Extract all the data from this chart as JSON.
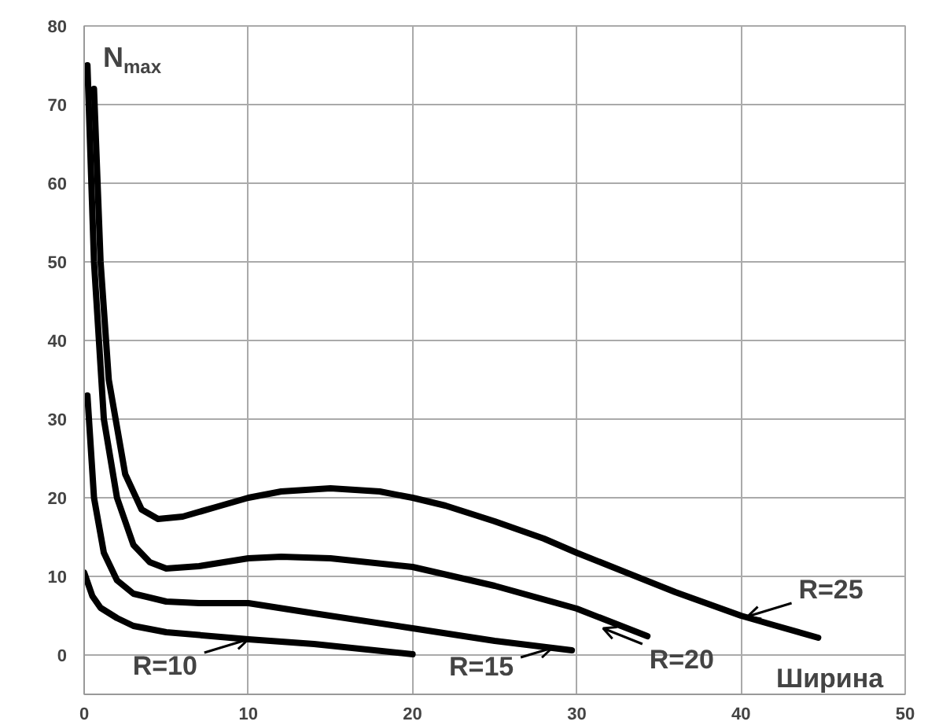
{
  "chart_data": {
    "type": "line",
    "xlabel": "Ширина",
    "ylabel": "N$_{max}$",
    "xlim": [
      0,
      50
    ],
    "ylim": [
      -5,
      80
    ],
    "xticks": [
      0,
      10,
      20,
      30,
      40,
      50
    ],
    "yticks": [
      0,
      10,
      20,
      30,
      40,
      50,
      60,
      70,
      80
    ],
    "grid": true,
    "marker": "none",
    "line_style": "solid",
    "series": [
      {
        "color": "#000000",
        "x": [
          0,
          0.5,
          1,
          2,
          3,
          5,
          10,
          14,
          20
        ],
        "values": [
          10.5,
          7.5,
          6,
          4.7,
          3.7,
          2.9,
          2.0,
          1.4,
          0.1
        ]
      },
      {
        "color": "#000000",
        "x": [
          0.2,
          0.6,
          1.2,
          2,
          3,
          5,
          7,
          10,
          14,
          20,
          25,
          29.7
        ],
        "values": [
          33,
          20,
          13,
          9.5,
          7.8,
          6.8,
          6.6,
          6.6,
          5.3,
          3.4,
          1.8,
          0.6
        ]
      },
      {
        "color": "#000000",
        "x": [
          0.2,
          0.6,
          1.2,
          2,
          3,
          4,
          5,
          7,
          10,
          12,
          15,
          20,
          25,
          30,
          34.3
        ],
        "values": [
          75,
          50,
          30,
          20,
          14,
          11.8,
          11,
          11.3,
          12.3,
          12.5,
          12.3,
          11.2,
          8.8,
          5.9,
          2.4
        ]
      },
      {
        "color": "#000000",
        "x": [
          0.6,
          1,
          1.5,
          2.5,
          3.5,
          4.5,
          6,
          8,
          10,
          12,
          15,
          18,
          20,
          22,
          25,
          28,
          30,
          33,
          36,
          40,
          42,
          44.7
        ],
        "values": [
          72,
          50,
          35,
          23,
          18.5,
          17.3,
          17.6,
          18.8,
          20,
          20.8,
          21.2,
          20.8,
          20,
          19,
          17,
          14.8,
          13,
          10.5,
          8,
          5,
          3.8,
          2.2
        ]
      }
    ],
    "annotations": [
      {
        "text": "R=10",
        "x": 10,
        "y": 2
      },
      {
        "text": "R=15",
        "x": 28.5,
        "y": 0.9
      },
      {
        "text": "R=20",
        "x": 31.6,
        "y": 3.4
      },
      {
        "text": "R=25",
        "x": 40.4,
        "y": 4.9
      }
    ]
  }
}
